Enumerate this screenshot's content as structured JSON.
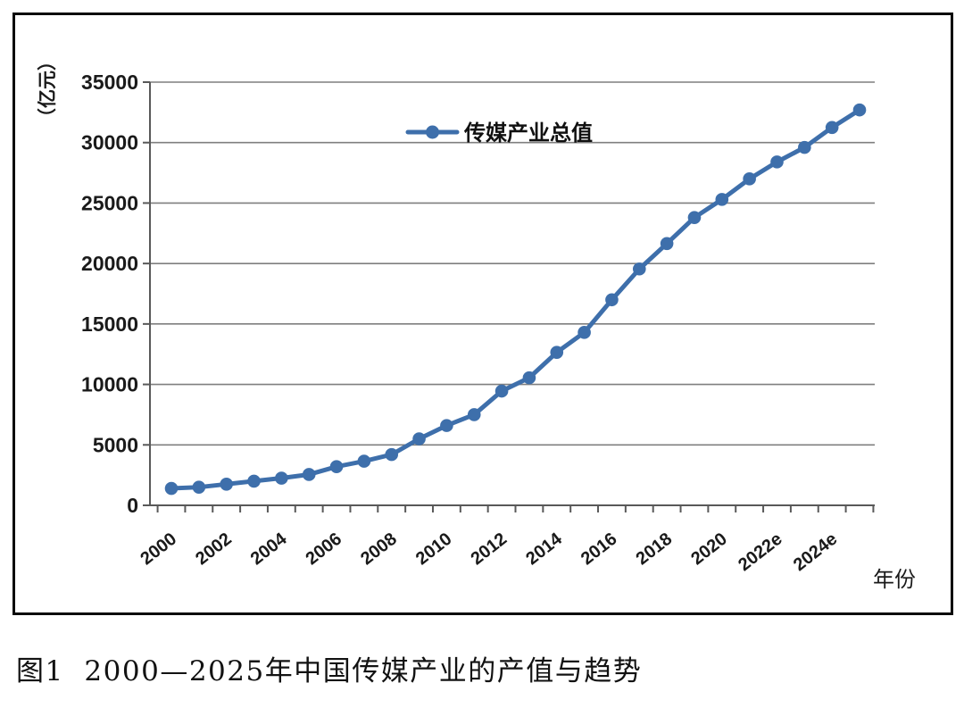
{
  "figure_caption": "图1  2000—2025年中国传媒产业的产值与趋势",
  "chart_data": {
    "type": "line",
    "title": "",
    "unit_label": "（亿元）",
    "x_axis_label": "年份",
    "legend_position": "top-center-inside",
    "grid": "horizontal",
    "ylim": [
      0,
      35000
    ],
    "ytick_step": 5000,
    "ytick_labels": [
      "0",
      "5000",
      "10000",
      "15000",
      "20000",
      "25000",
      "30000",
      "35000"
    ],
    "xtick_labels": [
      "2000",
      "2002",
      "2004",
      "2006",
      "2008",
      "2010",
      "2012",
      "2014",
      "2016",
      "2018",
      "2020",
      "2022e",
      "2024e"
    ],
    "x": [
      2000,
      2001,
      2002,
      2003,
      2004,
      2005,
      2006,
      2007,
      2008,
      2009,
      2010,
      2011,
      2012,
      2013,
      2014,
      2015,
      2016,
      2017,
      2018,
      2019,
      2020,
      2021,
      2022,
      2023,
      2024,
      2025
    ],
    "series": [
      {
        "name": "传媒产业总值",
        "marker": "circle",
        "values": [
          1400,
          1500,
          1750,
          2000,
          2250,
          2550,
          3200,
          3650,
          4200,
          5500,
          6600,
          7500,
          9450,
          10550,
          12650,
          14300,
          17000,
          19550,
          21650,
          23800,
          25300,
          27000,
          28400,
          29600,
          31250,
          32700
        ]
      }
    ],
    "colors": {
      "series": "#3E6FAB",
      "grid": "#7F7F7F",
      "axis": "#595959",
      "text": "#1A1A1A",
      "border": "#0A0A0A"
    }
  }
}
